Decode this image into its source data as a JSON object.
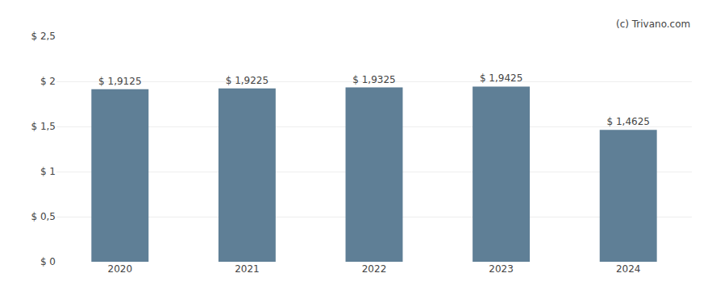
{
  "chart_data": {
    "type": "bar",
    "categories": [
      "2020",
      "2021",
      "2022",
      "2023",
      "2024"
    ],
    "values": [
      1.9125,
      1.9225,
      1.9325,
      1.9425,
      1.4625
    ],
    "value_labels": [
      "$ 1,9125",
      "$ 1,9225",
      "$ 1,9325",
      "$ 1,9425",
      "$ 1,4625"
    ],
    "data_labels": true,
    "color": "#5f7f96",
    "ylim": [
      0,
      2.5
    ],
    "yticks": [
      {
        "value": 0,
        "label": "$ 0"
      },
      {
        "value": 0.5,
        "label": "$ 0,5"
      },
      {
        "value": 1.0,
        "label": "$ 1"
      },
      {
        "value": 1.5,
        "label": "$ 1,5"
      },
      {
        "value": 2.0,
        "label": "$ 2"
      },
      {
        "value": 2.5,
        "label": "$ 2,5"
      }
    ],
    "grid": true,
    "annotations": [
      "(c) Trivano.com"
    ]
  }
}
